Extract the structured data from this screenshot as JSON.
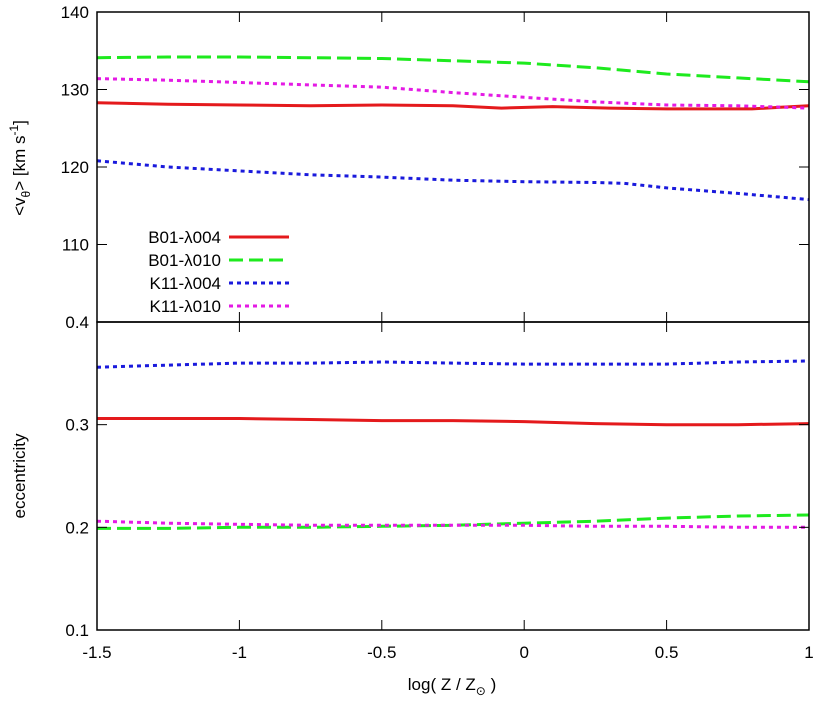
{
  "chart_data": [
    {
      "type": "line",
      "panel": "top",
      "title": "",
      "ylabel_parts": {
        "open": "<v",
        "sub": "θ",
        "close": "> [km s",
        "sup": "-1",
        "end": "]"
      },
      "ylim": [
        100,
        140
      ],
      "yticks": [
        {
          "value": 110,
          "label": "110"
        },
        {
          "value": 120,
          "label": "120"
        },
        {
          "value": 130,
          "label": "130"
        },
        {
          "value": 140,
          "label": "140"
        }
      ],
      "xlim": [
        -1.5,
        1
      ],
      "grid": false,
      "legend_position": "bottom-left",
      "series": [
        {
          "name": "B01-λ004",
          "color": "#e41a1c",
          "style": "solid",
          "x": [
            -1.5,
            -1.25,
            -1.0,
            -0.75,
            -0.5,
            -0.25,
            -0.08,
            0.1,
            0.3,
            0.5,
            0.7,
            0.8,
            0.9,
            1.0
          ],
          "y": [
            128.3,
            128.1,
            128.0,
            127.9,
            128.0,
            127.9,
            127.6,
            127.8,
            127.6,
            127.5,
            127.5,
            127.5,
            127.7,
            127.9
          ]
        },
        {
          "name": "B01-λ010",
          "color": "#1eea1e",
          "style": "dashed",
          "x": [
            -1.5,
            -1.25,
            -1.0,
            -0.75,
            -0.5,
            -0.25,
            0.0,
            0.25,
            0.5,
            0.75,
            1.0
          ],
          "y": [
            134.1,
            134.2,
            134.2,
            134.1,
            134.0,
            133.7,
            133.4,
            132.8,
            132.0,
            131.5,
            131.0
          ]
        },
        {
          "name": "K11-λ004",
          "color": "#1a1adc",
          "style": "dotted",
          "x": [
            -1.5,
            -1.25,
            -1.0,
            -0.75,
            -0.5,
            -0.25,
            0.0,
            0.25,
            0.35,
            0.5,
            0.75,
            1.0
          ],
          "y": [
            120.8,
            120.0,
            119.5,
            119.0,
            118.7,
            118.3,
            118.1,
            118.0,
            117.9,
            117.3,
            116.6,
            115.8
          ]
        },
        {
          "name": "K11-λ010",
          "color": "#e41ae4",
          "style": "dotted",
          "x": [
            -1.5,
            -1.25,
            -1.0,
            -0.75,
            -0.5,
            -0.25,
            0.0,
            0.25,
            0.5,
            0.75,
            1.0
          ],
          "y": [
            131.4,
            131.2,
            130.9,
            130.6,
            130.3,
            129.6,
            129.0,
            128.4,
            128.0,
            127.9,
            127.6
          ]
        }
      ]
    },
    {
      "type": "line",
      "panel": "bottom",
      "title": "",
      "xlabel_parts": {
        "main": "log( Z / Z",
        "sub": "⊙",
        "end": " )"
      },
      "ylabel": "eccentricity",
      "ylim": [
        0.1,
        0.4
      ],
      "yticks": [
        {
          "value": 0.1,
          "label": "0.1"
        },
        {
          "value": 0.2,
          "label": "0.2"
        },
        {
          "value": 0.3,
          "label": "0.3"
        },
        {
          "value": 0.4,
          "label": "0.4"
        }
      ],
      "xlim": [
        -1.5,
        1
      ],
      "xticks": [
        {
          "value": -1.5,
          "label": "-1.5"
        },
        {
          "value": -1.0,
          "label": "-1"
        },
        {
          "value": -0.5,
          "label": "-0.5"
        },
        {
          "value": 0.0,
          "label": "0"
        },
        {
          "value": 0.5,
          "label": "0.5"
        },
        {
          "value": 1.0,
          "label": "1"
        }
      ],
      "grid": false,
      "series": [
        {
          "name": "B01-λ004",
          "color": "#e41a1c",
          "style": "solid",
          "x": [
            -1.5,
            -1.25,
            -1.0,
            -0.75,
            -0.5,
            -0.25,
            0.0,
            0.25,
            0.5,
            0.75,
            1.0
          ],
          "y": [
            0.306,
            0.306,
            0.306,
            0.305,
            0.304,
            0.304,
            0.303,
            0.301,
            0.3,
            0.3,
            0.301
          ]
        },
        {
          "name": "B01-λ010",
          "color": "#1eea1e",
          "style": "dashed",
          "x": [
            -1.5,
            -1.25,
            -1.0,
            -0.75,
            -0.5,
            -0.25,
            0.0,
            0.25,
            0.5,
            0.75,
            1.0
          ],
          "y": [
            0.199,
            0.199,
            0.2,
            0.2,
            0.201,
            0.202,
            0.204,
            0.206,
            0.209,
            0.211,
            0.212
          ]
        },
        {
          "name": "K11-λ004",
          "color": "#1a1adc",
          "style": "dotted",
          "x": [
            -1.5,
            -1.25,
            -1.0,
            -0.75,
            -0.5,
            -0.25,
            0.0,
            0.25,
            0.5,
            0.75,
            1.0
          ],
          "y": [
            0.356,
            0.358,
            0.36,
            0.36,
            0.361,
            0.36,
            0.359,
            0.359,
            0.359,
            0.361,
            0.362
          ]
        },
        {
          "name": "K11-λ010",
          "color": "#e41ae4",
          "style": "dotted",
          "x": [
            -1.5,
            -1.25,
            -1.0,
            -0.75,
            -0.5,
            -0.25,
            0.0,
            0.25,
            0.5,
            0.75,
            1.0
          ],
          "y": [
            0.206,
            0.204,
            0.203,
            0.202,
            0.202,
            0.202,
            0.202,
            0.201,
            0.201,
            0.2,
            0.2
          ]
        }
      ]
    }
  ]
}
